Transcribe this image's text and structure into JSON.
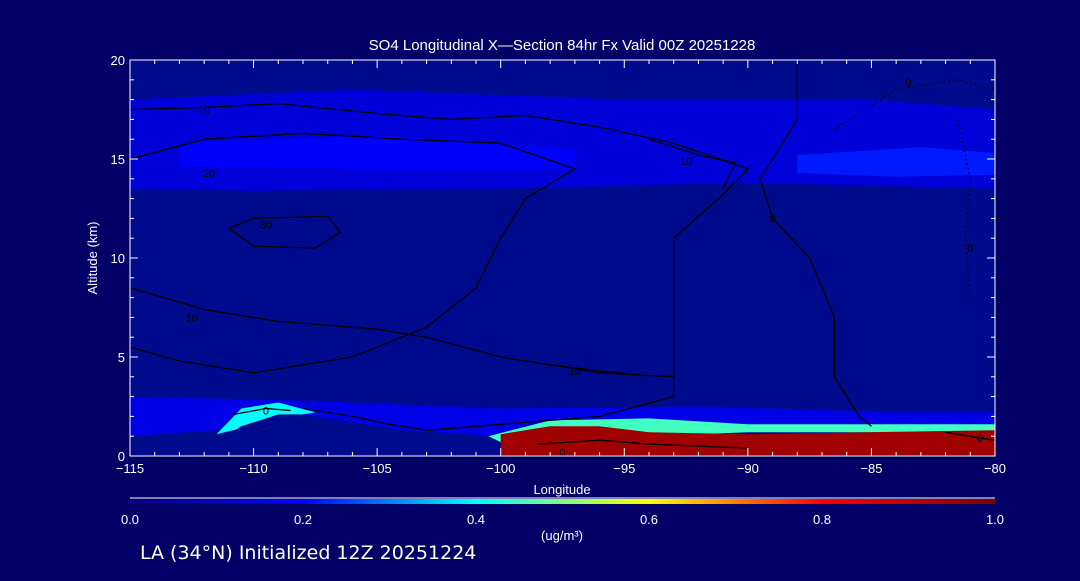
{
  "chart_data": {
    "type": "heatmap",
    "title": "SO4 Longitudinal X—Section 84hr  Fx Valid 00Z 20251228",
    "xlabel": "Longitude",
    "ylabel": "Altitude (km)",
    "xlim": [
      -115,
      -80
    ],
    "ylim": [
      0,
      20
    ],
    "x_ticks": [
      -115,
      -110,
      -105,
      -100,
      -95,
      -90,
      -85,
      -80
    ],
    "x_tick_labels": [
      "−115",
      "−110",
      "−105",
      "−100",
      "−95",
      "−90",
      "−85",
      "−80"
    ],
    "y_ticks": [
      0,
      5,
      10,
      15,
      20
    ],
    "y_tick_labels": [
      "0",
      "5",
      "10",
      "15",
      "20"
    ],
    "colorbar": {
      "min": 0.0,
      "max": 1.0,
      "ticks": [
        0.0,
        0.2,
        0.4,
        0.6,
        0.8,
        1.0
      ],
      "tick_labels": [
        "0.0",
        "0.2",
        "0.4",
        "0.6",
        "0.8",
        "1.0"
      ],
      "label": "(ug/m³)",
      "colors": [
        "#000080",
        "#0000ff",
        "#00ffff",
        "#ffff00",
        "#ff0000",
        "#800000"
      ]
    },
    "colors": {
      "background": "#000066",
      "field_base": "#000a8c",
      "contour": "#000000",
      "text": "#ffffff"
    },
    "terrain": [
      [
        -115,
        0
      ],
      [
        -112,
        0.2
      ],
      [
        -111,
        1.1
      ],
      [
        -110.5,
        1.5
      ],
      [
        -109,
        2.1
      ],
      [
        -108,
        2.1
      ],
      [
        -106,
        1.7
      ],
      [
        -104,
        1.3
      ],
      [
        -102,
        0.9
      ],
      [
        -100.5,
        0.4
      ],
      [
        -100,
        0
      ],
      [
        -80,
        0
      ]
    ],
    "field_bands": [
      {
        "name": "upper-layer",
        "value": 0.14,
        "points": [
          [
            -115,
            18
          ],
          [
            -106,
            18.5
          ],
          [
            -95,
            18
          ],
          [
            -85,
            18
          ],
          [
            -80,
            17.5
          ],
          [
            -80,
            13.5
          ],
          [
            -90,
            13.8
          ],
          [
            -100,
            13.5
          ],
          [
            -110,
            13.4
          ],
          [
            -115,
            13.5
          ]
        ]
      },
      {
        "name": "upper-core",
        "value": 0.2,
        "points": [
          [
            -113,
            15.8
          ],
          [
            -105,
            16.2
          ],
          [
            -97,
            15.5
          ],
          [
            -97,
            14.5
          ],
          [
            -105,
            14.5
          ],
          [
            -113,
            14.6
          ]
        ]
      },
      {
        "name": "right-core",
        "value": 0.22,
        "points": [
          [
            -88,
            15.2
          ],
          [
            -83,
            15.6
          ],
          [
            -80,
            15.3
          ],
          [
            -80,
            14.2
          ],
          [
            -84,
            14.1
          ],
          [
            -88,
            14.3
          ]
        ]
      },
      {
        "name": "low-haze",
        "value": 0.16,
        "points": [
          [
            -115,
            3
          ],
          [
            -108,
            2.8
          ],
          [
            -100,
            2.4
          ],
          [
            -92,
            2.5
          ],
          [
            -84,
            2.2
          ],
          [
            -80,
            2.2
          ],
          [
            -80,
            1.4
          ],
          [
            -92,
            1.2
          ],
          [
            -100,
            1.0
          ],
          [
            -108,
            1.6
          ],
          [
            -115,
            1.0
          ]
        ]
      },
      {
        "name": "mountain-plume",
        "value": 0.4,
        "points": [
          [
            -111.5,
            1.1
          ],
          [
            -110.5,
            2.4
          ],
          [
            -109,
            2.7
          ],
          [
            -107.5,
            2.2
          ],
          [
            -109,
            1.9
          ],
          [
            -110.5,
            1.4
          ]
        ]
      },
      {
        "name": "plume-edge",
        "value": 0.45,
        "points": [
          [
            -100.5,
            1.0
          ],
          [
            -98,
            1.8
          ],
          [
            -94,
            1.9
          ],
          [
            -90,
            1.6
          ],
          [
            -85,
            1.6
          ],
          [
            -80,
            1.6
          ],
          [
            -80,
            1.2
          ],
          [
            -90,
            1.2
          ],
          [
            -100,
            0.7
          ]
        ]
      },
      {
        "name": "boundary-plume",
        "value": 0.95,
        "points": [
          [
            -100,
            0.05
          ],
          [
            -100,
            1.1
          ],
          [
            -98,
            1.5
          ],
          [
            -96,
            1.5
          ],
          [
            -94,
            1.2
          ],
          [
            -90,
            1.1
          ],
          [
            -85,
            1.2
          ],
          [
            -80,
            1.3
          ],
          [
            -80,
            0.05
          ]
        ]
      }
    ],
    "contours": [
      {
        "label": "10",
        "label_at": [
          -112,
          17.5
        ],
        "points": [
          [
            -115,
            17.5
          ],
          [
            -112,
            17.6
          ],
          [
            -109,
            17.8
          ],
          [
            -105,
            17.3
          ],
          [
            -102,
            17.0
          ],
          [
            -99,
            17.2
          ],
          [
            -96,
            16.6
          ],
          [
            -93,
            15.8
          ],
          [
            -90,
            14.5
          ],
          [
            -91,
            13.2
          ],
          [
            -93,
            11.0
          ],
          [
            -93,
            8.0
          ],
          [
            -93,
            5.0
          ],
          [
            -93,
            3.0
          ],
          [
            -96,
            2.0
          ],
          [
            -100,
            1.6
          ],
          [
            -103,
            1.3
          ],
          [
            -104.5,
            1.6
          ],
          [
            -106,
            2.0
          ],
          [
            -108,
            2.4
          ]
        ]
      },
      {
        "label": "20",
        "label_at": [
          -111.8,
          14.3
        ],
        "points": [
          [
            -115,
            15.0
          ],
          [
            -112,
            16.0
          ],
          [
            -108,
            16.3
          ],
          [
            -104,
            16.0
          ],
          [
            -100,
            15.8
          ],
          [
            -97,
            14.5
          ],
          [
            -99,
            13.0
          ],
          [
            -100,
            11.0
          ],
          [
            -101,
            8.5
          ],
          [
            -103,
            6.5
          ],
          [
            -106,
            5.0
          ],
          [
            -110,
            4.2
          ],
          [
            -113,
            4.8
          ],
          [
            -115,
            5.5
          ]
        ]
      },
      {
        "label": "30",
        "label_at": [
          -109.5,
          11.7
        ],
        "points": [
          [
            -111,
            11.5
          ],
          [
            -110,
            12.0
          ],
          [
            -107,
            12.1
          ],
          [
            -106.5,
            11.3
          ],
          [
            -107.5,
            10.5
          ],
          [
            -110,
            10.6
          ],
          [
            -111,
            11.5
          ]
        ]
      },
      {
        "label": "10",
        "label_at": [
          -112.5,
          7.0
        ],
        "points": [
          [
            -115,
            8.5
          ],
          [
            -112,
            7.4
          ],
          [
            -109,
            6.8
          ],
          [
            -105,
            6.4
          ],
          [
            -103,
            6.0
          ],
          [
            -100,
            5.0
          ],
          [
            -96,
            4.2
          ],
          [
            -93,
            4.0
          ]
        ]
      },
      {
        "label": "10",
        "label_at": [
          -92.5,
          14.9
        ],
        "points": [
          [
            -94,
            16.0
          ],
          [
            -92,
            15.2
          ],
          [
            -90.5,
            14.8
          ],
          [
            -91,
            13.5
          ]
        ]
      },
      {
        "label": "0",
        "label_at": [
          -109.5,
          2.3
        ],
        "points": [
          [
            -110.8,
            2.1
          ],
          [
            -109.5,
            2.4
          ],
          [
            -108.5,
            2.3
          ]
        ]
      },
      {
        "label": "10",
        "label_at": [
          -97,
          4.3
        ],
        "points": [
          [
            -98,
            4.6
          ],
          [
            -96,
            4.3
          ],
          [
            -94.5,
            4.1
          ]
        ]
      },
      {
        "label": "0",
        "label_at": [
          -89,
          12.0
        ],
        "points": [
          [
            -88,
            20.0
          ],
          [
            -88,
            17.0
          ],
          [
            -89.5,
            14.0
          ],
          [
            -89,
            12.0
          ],
          [
            -87.5,
            10.0
          ],
          [
            -86.5,
            7.0
          ],
          [
            -86.5,
            4.0
          ],
          [
            -85.5,
            2.0
          ],
          [
            -85,
            1.5
          ]
        ]
      },
      {
        "label": "0",
        "label_at": [
          -80.6,
          0.9
        ],
        "points": [
          [
            -82,
            1.2
          ],
          [
            -80.6,
            0.9
          ],
          [
            -80,
            0.8
          ]
        ]
      },
      {
        "label": "0",
        "label_at": [
          -97.5,
          0.2
        ],
        "points": [
          [
            -98.5,
            0.6
          ],
          [
            -96,
            0.8
          ],
          [
            -94,
            0.6
          ],
          [
            -92,
            0.5
          ],
          [
            -90,
            0.4
          ]
        ]
      }
    ],
    "dotted_contours": [
      {
        "label": "0",
        "label_at": [
          -83.5,
          18.9
        ],
        "points": [
          [
            -86.5,
            16.5
          ],
          [
            -84,
            18.5
          ],
          [
            -81.5,
            19.0
          ],
          [
            -80,
            18.5
          ]
        ]
      },
      {
        "label": "0",
        "label_at": [
          -81,
          10.5
        ],
        "points": [
          [
            -81.5,
            17.0
          ],
          [
            -81.0,
            14.0
          ],
          [
            -81.2,
            11.0
          ],
          [
            -81.0,
            8.0
          ]
        ]
      }
    ]
  },
  "footer": {
    "text": "LA (34°N) Initialized 12Z 20251224"
  }
}
